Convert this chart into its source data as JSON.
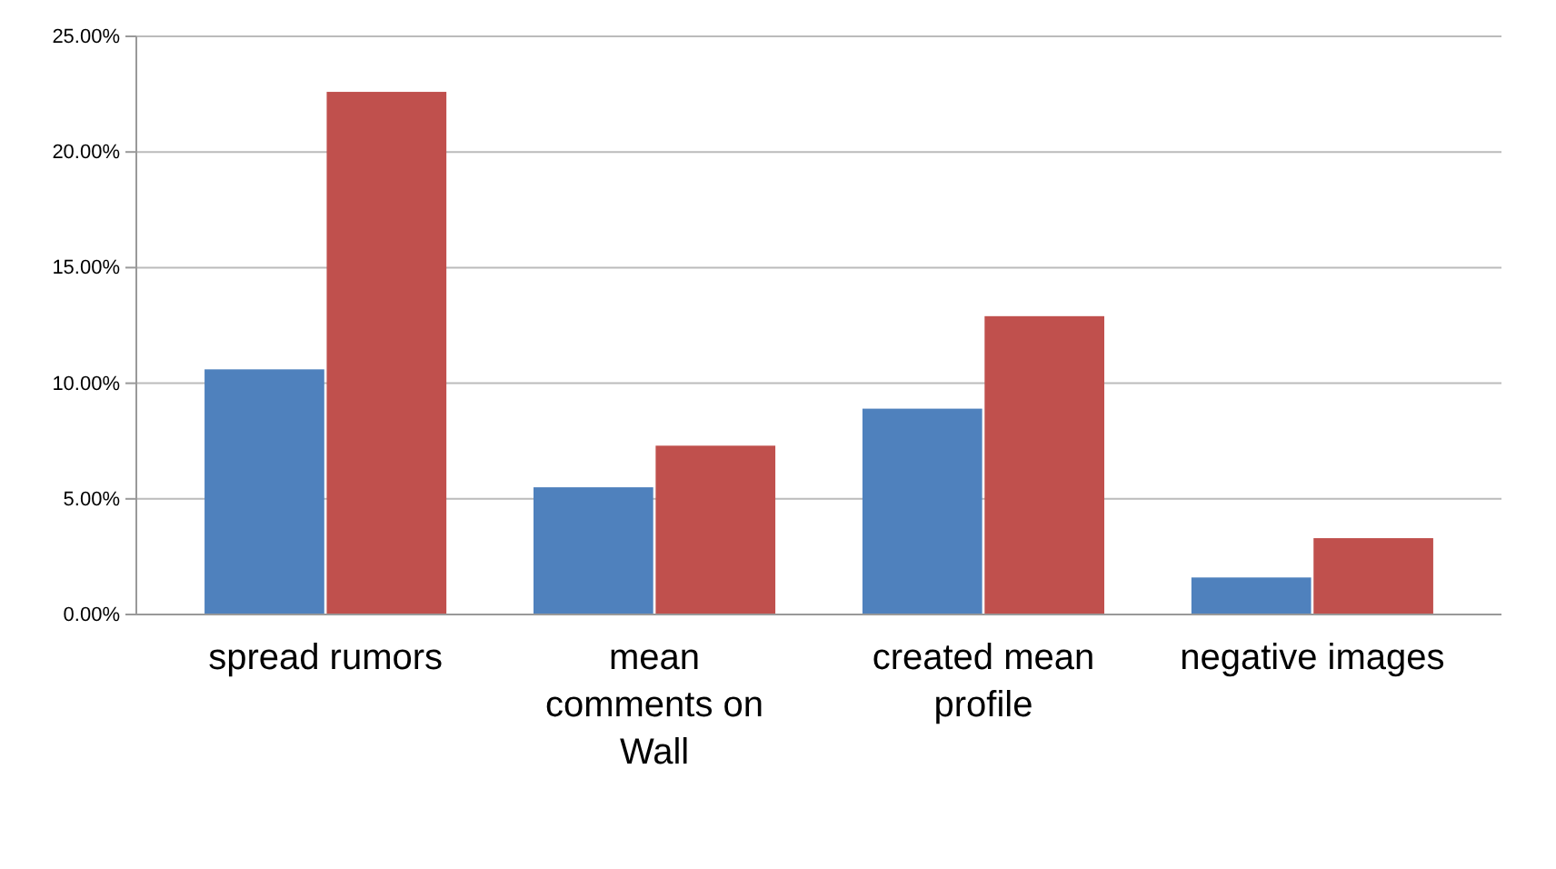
{
  "chart_data": {
    "type": "bar",
    "categories": [
      "spread rumors",
      "mean comments on Wall",
      "created mean profile",
      "negative images"
    ],
    "series": [
      {
        "color": "#4f81bd",
        "values": [
          10.6,
          5.5,
          8.9,
          1.6
        ]
      },
      {
        "color": "#c0504d",
        "values": [
          22.6,
          7.3,
          12.9,
          3.3
        ]
      }
    ],
    "ylim": [
      0,
      25
    ],
    "yticks": [
      {
        "value": 0,
        "label": "0.00%"
      },
      {
        "value": 5,
        "label": "5.00%"
      },
      {
        "value": 10,
        "label": "10.00%"
      },
      {
        "value": 15,
        "label": "15.00%"
      },
      {
        "value": 20,
        "label": "20.00%"
      },
      {
        "value": 25,
        "label": "25.00%"
      }
    ],
    "grid": "y"
  }
}
